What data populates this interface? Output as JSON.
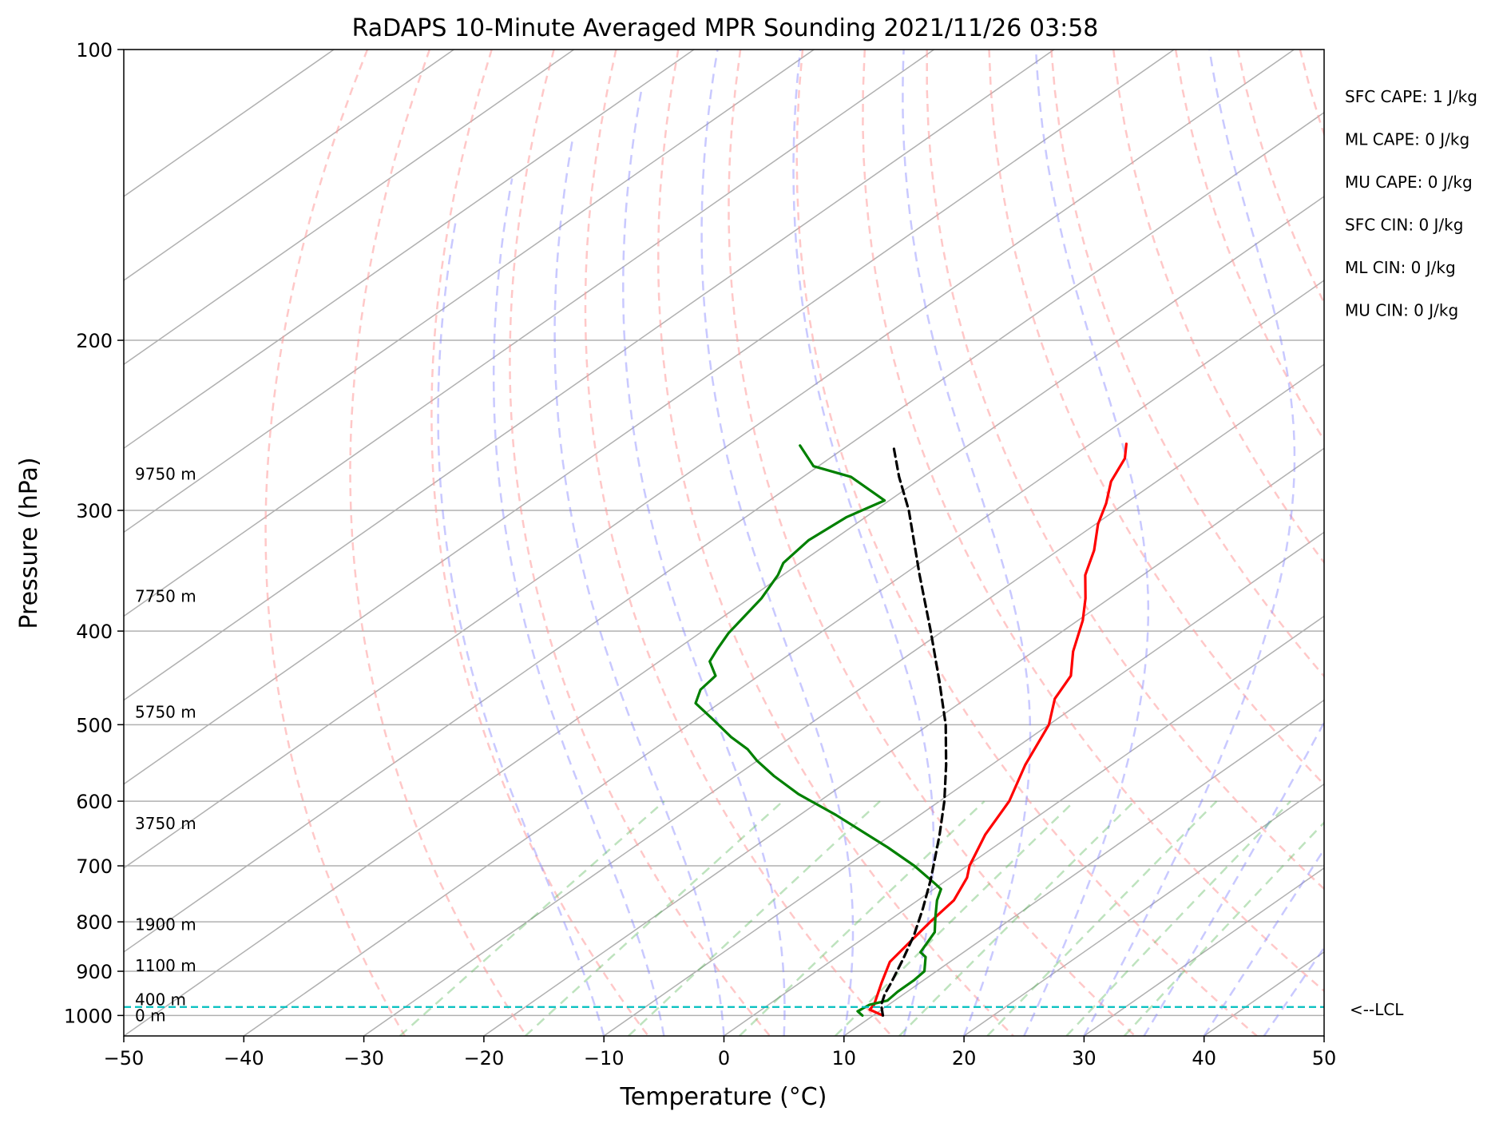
{
  "chart_data": {
    "type": "line",
    "title": "RaDAPS 10-Minute Averaged MPR Sounding 2021/11/26 03:58",
    "xlabel": "Temperature (°C)",
    "ylabel": "Pressure (hPa)",
    "xlim": [
      -50,
      50
    ],
    "ylim": [
      1050,
      100
    ],
    "y_scale": "log",
    "x_ticks": [
      "−50",
      "−40",
      "−30",
      "−20",
      "−10",
      "0",
      "10",
      "20",
      "30",
      "40",
      "50"
    ],
    "y_ticks": [
      "100",
      "200",
      "300",
      "400",
      "500",
      "600",
      "700",
      "800",
      "900",
      "1000"
    ],
    "grid": true,
    "skew": "skew-T log-P diagram",
    "series": [
      {
        "color": "#ff0000",
        "points": [
          {
            "t": 10.8,
            "p": 1000
          },
          {
            "t": 9.0,
            "p": 986
          },
          {
            "t": 8.8,
            "p": 975
          },
          {
            "t": 6.8,
            "p": 925
          },
          {
            "t": 5.0,
            "p": 880
          },
          {
            "t": 3.6,
            "p": 800
          },
          {
            "t": 3.0,
            "p": 760
          },
          {
            "t": 1.4,
            "p": 720
          },
          {
            "t": 0.2,
            "p": 700
          },
          {
            "t": -2.2,
            "p": 650
          },
          {
            "t": -4.2,
            "p": 600
          },
          {
            "t": -7.2,
            "p": 550
          },
          {
            "t": -10.0,
            "p": 500
          },
          {
            "t": -12.6,
            "p": 470
          },
          {
            "t": -14.0,
            "p": 445
          },
          {
            "t": -16.7,
            "p": 420
          },
          {
            "t": -19.6,
            "p": 390
          },
          {
            "t": -22.0,
            "p": 370
          },
          {
            "t": -24.8,
            "p": 350
          },
          {
            "t": -27.0,
            "p": 330
          },
          {
            "t": -29.8,
            "p": 310
          },
          {
            "t": -31.6,
            "p": 295
          },
          {
            "t": -33.8,
            "p": 280
          },
          {
            "t": -35.4,
            "p": 265
          },
          {
            "t": -37.0,
            "p": 256
          }
        ]
      },
      {
        "color": "#008000",
        "points": [
          {
            "t": 9.1,
            "p": 1000
          },
          {
            "t": 8.2,
            "p": 990
          },
          {
            "t": 8.4,
            "p": 975
          },
          {
            "t": 9.4,
            "p": 965
          },
          {
            "t": 9.2,
            "p": 945
          },
          {
            "t": 9.2,
            "p": 920
          },
          {
            "t": 9.0,
            "p": 900
          },
          {
            "t": 7.4,
            "p": 870
          },
          {
            "t": 6.4,
            "p": 860
          },
          {
            "t": 5.2,
            "p": 820
          },
          {
            "t": 3.4,
            "p": 790
          },
          {
            "t": 1.6,
            "p": 760
          },
          {
            "t": 0.6,
            "p": 740
          },
          {
            "t": -0.6,
            "p": 730
          },
          {
            "t": -4.4,
            "p": 700
          },
          {
            "t": -8.8,
            "p": 670
          },
          {
            "t": -12.0,
            "p": 650
          },
          {
            "t": -17.0,
            "p": 620
          },
          {
            "t": -22.6,
            "p": 590
          },
          {
            "t": -26.8,
            "p": 565
          },
          {
            "t": -30.0,
            "p": 545
          },
          {
            "t": -32.2,
            "p": 530
          },
          {
            "t": -35.0,
            "p": 515
          },
          {
            "t": -38.4,
            "p": 495
          },
          {
            "t": -42.0,
            "p": 475
          },
          {
            "t": -43.2,
            "p": 460
          },
          {
            "t": -43.6,
            "p": 445
          },
          {
            "t": -45.8,
            "p": 430
          },
          {
            "t": -46.6,
            "p": 418
          },
          {
            "t": -47.6,
            "p": 402
          },
          {
            "t": -48.2,
            "p": 388
          },
          {
            "t": -49.0,
            "p": 370
          },
          {
            "t": -50.4,
            "p": 350
          },
          {
            "t": -51.4,
            "p": 340
          },
          {
            "t": -52.0,
            "p": 322
          },
          {
            "t": -51.6,
            "p": 305
          },
          {
            "t": -50.4,
            "p": 293
          },
          {
            "t": -56.0,
            "p": 277
          },
          {
            "t": -60.4,
            "p": 270
          },
          {
            "t": -64.0,
            "p": 257
          }
        ]
      },
      {
        "color": "#000000",
        "line_style": "dashed",
        "points": [
          {
            "t": 10.8,
            "p": 1000
          },
          {
            "t": 9.4,
            "p": 975
          },
          {
            "t": 8.4,
            "p": 950
          },
          {
            "t": 7.6,
            "p": 925
          },
          {
            "t": 5.8,
            "p": 875
          },
          {
            "t": 3.8,
            "p": 825
          },
          {
            "t": 1.4,
            "p": 775
          },
          {
            "t": -1.3,
            "p": 725
          },
          {
            "t": -2.8,
            "p": 700
          },
          {
            "t": -6.0,
            "p": 650
          },
          {
            "t": -9.6,
            "p": 600
          },
          {
            "t": -13.8,
            "p": 550
          },
          {
            "t": -18.6,
            "p": 500
          },
          {
            "t": -24.4,
            "p": 450
          },
          {
            "t": -31.0,
            "p": 400
          },
          {
            "t": -38.6,
            "p": 350
          },
          {
            "t": -47.2,
            "p": 300
          },
          {
            "t": -52.0,
            "p": 277
          },
          {
            "t": -56.0,
            "p": 258
          }
        ]
      }
    ],
    "lcl": {
      "pressure": 980,
      "label": "<--LCL",
      "color": "#00bfbf"
    },
    "height_labels": [
      {
        "label": "9750 m",
        "p": 275
      },
      {
        "label": "7750 m",
        "p": 368
      },
      {
        "label": "5750 m",
        "p": 485
      },
      {
        "label": "3750 m",
        "p": 633
      },
      {
        "label": "1900 m",
        "p": 805
      },
      {
        "label": "1100 m",
        "p": 888
      },
      {
        "label": "400 m",
        "p": 963
      },
      {
        "label": "0 m",
        "p": 1000
      }
    ],
    "stats": [
      "SFC CAPE: 1 J/kg",
      "ML CAPE: 0 J/kg",
      "MU CAPE: 0 J/kg",
      "SFC CIN: 0 J/kg",
      "ML CIN: 0 J/kg",
      "MU CIN: 0 J/kg"
    ]
  }
}
